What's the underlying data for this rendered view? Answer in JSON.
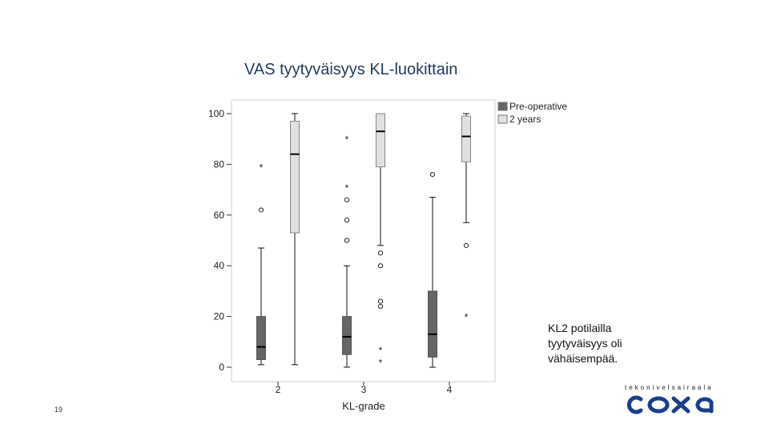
{
  "slide": {
    "title": "VAS tyytyväisyys KL-luokittain",
    "note_lines": [
      "KL2 potilailla",
      "tyytyväisyys oli",
      "vähäisempää."
    ],
    "page_number": "19",
    "logo_tagline": "tekonivelsairaala",
    "logo_name": "coxa",
    "logo_color": "#1b3f8f"
  },
  "chart_data": {
    "type": "boxplot",
    "xlabel": "KL-grade",
    "ylabel": "",
    "categories": [
      "2",
      "3",
      "4"
    ],
    "ylim": [
      0,
      100
    ],
    "yticks": [
      0,
      20,
      40,
      60,
      80,
      100
    ],
    "grid": false,
    "legend_position": "right, outside plot",
    "series": [
      {
        "name": "Pre-operative",
        "color": "#666666",
        "boxes": [
          {
            "category": "2",
            "whisker_low": 1,
            "q1": 3,
            "median": 8,
            "q3": 20,
            "whisker_high": 47,
            "outliers": [
              {
                "value": 62,
                "symbol": "o"
              },
              {
                "value": 79,
                "symbol": "*"
              }
            ]
          },
          {
            "category": "3",
            "whisker_low": 0,
            "q1": 5,
            "median": 12,
            "q3": 20,
            "whisker_high": 40,
            "outliers": [
              {
                "value": 50,
                "symbol": "o"
              },
              {
                "value": 58,
                "symbol": "o"
              },
              {
                "value": 66,
                "symbol": "o"
              },
              {
                "value": 71,
                "symbol": "*"
              },
              {
                "value": 90,
                "symbol": "*"
              }
            ]
          },
          {
            "category": "4",
            "whisker_low": 0,
            "q1": 4,
            "median": 13,
            "q3": 30,
            "whisker_high": 67,
            "outliers": [
              {
                "value": 76,
                "symbol": "o"
              }
            ]
          }
        ]
      },
      {
        "name": "2 years",
        "color": "#e0e0e0",
        "boxes": [
          {
            "category": "2",
            "whisker_low": 1,
            "q1": 53,
            "median": 84,
            "q3": 97,
            "whisker_high": 100,
            "outliers": []
          },
          {
            "category": "3",
            "whisker_low": 48,
            "q1": 79,
            "median": 93,
            "q3": 100,
            "whisker_high": 100,
            "outliers": [
              {
                "value": 2,
                "symbol": "*"
              },
              {
                "value": 7,
                "symbol": "*"
              },
              {
                "value": 24,
                "symbol": "o"
              },
              {
                "value": 26,
                "symbol": "o"
              },
              {
                "value": 40,
                "symbol": "o"
              },
              {
                "value": 45,
                "symbol": "o"
              }
            ]
          },
          {
            "category": "4",
            "whisker_low": 57,
            "q1": 81,
            "median": 91,
            "q3": 99,
            "whisker_high": 100,
            "outliers": [
              {
                "value": 20,
                "symbol": "*"
              },
              {
                "value": 48,
                "symbol": "o"
              }
            ]
          }
        ]
      }
    ]
  }
}
